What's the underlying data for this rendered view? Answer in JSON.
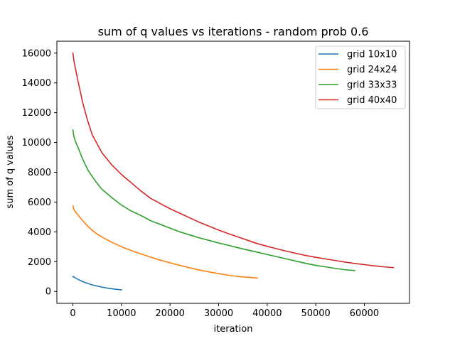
{
  "chart_data": {
    "type": "line",
    "title": "sum of q values vs iterations - random prob 0.6",
    "xlabel": "iteration",
    "ylabel": "sum of q values",
    "xlim": [
      -3300,
      69300
    ],
    "ylim": [
      -800,
      16800
    ],
    "xticks": [
      0,
      10000,
      20000,
      30000,
      40000,
      50000,
      60000
    ],
    "yticks": [
      0,
      2000,
      4000,
      6000,
      8000,
      10000,
      12000,
      14000,
      16000
    ],
    "grid": false,
    "legend_position": "upper right",
    "series": [
      {
        "name": "grid 10x10",
        "color": "#1f77b4",
        "x": [
          0,
          500,
          1000,
          2000,
          3000,
          4000,
          5000,
          6000,
          7000,
          8000,
          9000,
          10000
        ],
        "y": [
          1000,
          910,
          820,
          660,
          540,
          440,
          360,
          290,
          230,
          180,
          140,
          110
        ]
      },
      {
        "name": "grid 24x24",
        "color": "#ff7f0e",
        "x": [
          0,
          200,
          500,
          1000,
          2000,
          3000,
          4000,
          5000,
          6000,
          8000,
          10000,
          12000,
          14000,
          16000,
          18000,
          20000,
          22000,
          24000,
          26000,
          28000,
          30000,
          32000,
          34000,
          36000,
          38000
        ],
        "y": [
          5750,
          5500,
          5350,
          5150,
          4750,
          4400,
          4100,
          3850,
          3650,
          3300,
          3000,
          2750,
          2520,
          2300,
          2100,
          1920,
          1750,
          1590,
          1440,
          1310,
          1200,
          1090,
          1000,
          950,
          900
        ]
      },
      {
        "name": "grid 33x33",
        "color": "#2ca02c",
        "x": [
          0,
          200,
          500,
          1000,
          2000,
          3000,
          4000,
          5000,
          6000,
          8000,
          10000,
          12000,
          14000,
          16000,
          18000,
          20000,
          22000,
          24000,
          26000,
          28000,
          30000,
          32000,
          34000,
          36000,
          38000,
          40000,
          42000,
          44000,
          46000,
          48000,
          50000,
          52000,
          54000,
          56000,
          58000
        ],
        "y": [
          10850,
          10400,
          10100,
          9700,
          8900,
          8200,
          7700,
          7250,
          6850,
          6300,
          5800,
          5400,
          5100,
          4750,
          4500,
          4250,
          4000,
          3800,
          3600,
          3430,
          3250,
          3100,
          2930,
          2780,
          2630,
          2480,
          2330,
          2180,
          2030,
          1880,
          1750,
          1650,
          1550,
          1460,
          1400
        ]
      },
      {
        "name": "grid 40x40",
        "color": "#d62728",
        "x": [
          0,
          200,
          500,
          1000,
          2000,
          3000,
          4000,
          5000,
          6000,
          8000,
          10000,
          12000,
          14000,
          16000,
          18000,
          20000,
          22000,
          24000,
          26000,
          28000,
          30000,
          32000,
          34000,
          36000,
          38000,
          40000,
          42000,
          44000,
          46000,
          48000,
          50000,
          52000,
          54000,
          56000,
          58000,
          60000,
          62000,
          64000,
          66000
        ],
        "y": [
          16000,
          15500,
          15000,
          14200,
          12700,
          11500,
          10500,
          9900,
          9300,
          8500,
          7850,
          7300,
          6750,
          6250,
          5900,
          5550,
          5250,
          4950,
          4650,
          4380,
          4120,
          3880,
          3660,
          3430,
          3210,
          3030,
          2860,
          2700,
          2550,
          2410,
          2290,
          2180,
          2080,
          1970,
          1880,
          1800,
          1720,
          1650,
          1600
        ]
      }
    ]
  }
}
